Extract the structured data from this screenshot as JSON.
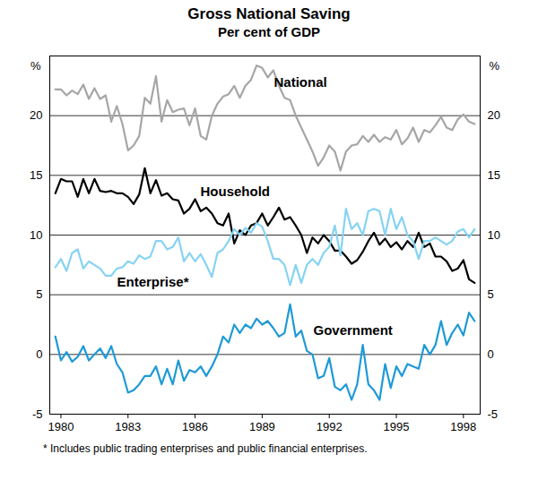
{
  "chart_data": {
    "type": "line",
    "title": "Gross National Saving",
    "subtitle": "Per cent of GDP",
    "y_label": "%",
    "footnote": "* Includes public trading enterprises and public financial enterprises.",
    "xlim": [
      1979.5,
      1998.75
    ],
    "xticks": [
      1980,
      1983,
      1986,
      1989,
      1992,
      1995,
      1998
    ],
    "ylim": [
      -5,
      25
    ],
    "yticks": [
      -5,
      0,
      5,
      10,
      15,
      20
    ],
    "grid": true,
    "x": [
      1979.75,
      1980,
      1980.25,
      1980.5,
      1980.75,
      1981,
      1981.25,
      1981.5,
      1981.75,
      1982,
      1982.25,
      1982.5,
      1982.75,
      1983,
      1983.25,
      1983.5,
      1983.75,
      1984,
      1984.25,
      1984.5,
      1984.75,
      1985,
      1985.25,
      1985.5,
      1985.75,
      1986,
      1986.25,
      1986.5,
      1986.75,
      1987,
      1987.25,
      1987.5,
      1987.75,
      1988,
      1988.25,
      1988.5,
      1988.75,
      1989,
      1989.25,
      1989.5,
      1989.75,
      1990,
      1990.25,
      1990.5,
      1990.75,
      1991,
      1991.25,
      1991.5,
      1991.75,
      1992,
      1992.25,
      1992.5,
      1992.75,
      1993,
      1993.25,
      1993.5,
      1993.75,
      1994,
      1994.25,
      1994.5,
      1994.75,
      1995,
      1995.25,
      1995.5,
      1995.75,
      1996,
      1996.25,
      1996.5,
      1996.75,
      1997,
      1997.25,
      1997.5,
      1997.75,
      1998,
      1998.25,
      1998.5
    ],
    "series": [
      {
        "name": "National",
        "color": "#a6a6a6",
        "values": [
          22.2,
          22.2,
          21.7,
          22.1,
          21.8,
          22.6,
          21.4,
          22.3,
          21.4,
          21.7,
          19.5,
          20.8,
          19.3,
          17.1,
          17.5,
          18.3,
          21.5,
          21.0,
          23.3,
          19.5,
          21.3,
          20.3,
          20.5,
          20.6,
          19.2,
          20.6,
          18.3,
          18.0,
          20.0,
          21.0,
          21.6,
          21.8,
          22.5,
          21.5,
          22.5,
          23.0,
          24.2,
          24.0,
          23.2,
          23.8,
          22.5,
          21.5,
          21.3,
          20.0,
          19.0,
          18.0,
          17.0,
          15.8,
          16.5,
          17.5,
          17.0,
          15.4,
          17.0,
          17.5,
          17.6,
          18.3,
          17.8,
          18.4,
          17.8,
          18.2,
          18.0,
          18.8,
          17.6,
          18.1,
          19.0,
          17.8,
          18.8,
          18.6,
          19.2,
          19.9,
          19.0,
          18.8,
          19.7,
          20.1,
          19.5,
          19.3
        ]
      },
      {
        "name": "Household",
        "color": "#000000",
        "values": [
          13.5,
          14.7,
          14.5,
          14.5,
          13.2,
          14.7,
          13.5,
          14.7,
          13.7,
          13.6,
          13.7,
          13.5,
          13.5,
          13.2,
          12.6,
          13.4,
          15.6,
          13.5,
          14.6,
          13.3,
          13.5,
          13.0,
          12.9,
          11.8,
          12.2,
          13.0,
          12.0,
          12.3,
          11.8,
          11.0,
          10.8,
          11.8,
          9.3,
          10.4,
          10.0,
          10.8,
          11.0,
          11.8,
          10.8,
          11.5,
          12.3,
          11.3,
          11.5,
          10.8,
          10.0,
          8.5,
          9.8,
          9.3,
          10.0,
          9.5,
          8.7,
          8.7,
          8.2,
          7.6,
          7.9,
          8.6,
          9.5,
          10.2,
          9.2,
          9.7,
          9.0,
          9.4,
          8.8,
          9.5,
          9.0,
          10.2,
          9.0,
          9.3,
          8.2,
          8.2,
          7.8,
          7.0,
          7.2,
          7.9,
          6.3,
          6.0
        ]
      },
      {
        "name": "Enterprise*",
        "color": "#86d3f3",
        "values": [
          7.3,
          8.0,
          7.0,
          8.5,
          8.8,
          7.2,
          7.8,
          7.5,
          7.2,
          6.6,
          6.6,
          7.2,
          7.3,
          7.8,
          7.6,
          8.3,
          8.0,
          8.2,
          9.5,
          9.5,
          8.8,
          9.0,
          9.8,
          7.8,
          8.5,
          7.8,
          8.4,
          7.5,
          6.5,
          8.5,
          8.8,
          9.5,
          10.5,
          10.0,
          10.6,
          10.2,
          11.0,
          10.7,
          9.5,
          8.0,
          8.0,
          7.5,
          5.8,
          7.5,
          6.0,
          7.5,
          8.0,
          7.5,
          8.5,
          9.0,
          10.8,
          8.3,
          12.2,
          10.5,
          11.0,
          10.0,
          12.0,
          12.2,
          12.0,
          10.0,
          12.2,
          10.5,
          11.5,
          10.0,
          9.5,
          8.0,
          9.5,
          9.5,
          9.8,
          9.5,
          9.2,
          9.5,
          10.3,
          10.5,
          9.8,
          10.5
        ]
      },
      {
        "name": "Government",
        "color": "#1e9ad6",
        "values": [
          1.5,
          -0.5,
          0.2,
          -0.6,
          -0.2,
          0.7,
          -0.5,
          0.0,
          0.5,
          -0.3,
          0.7,
          -0.8,
          -1.5,
          -3.2,
          -3.0,
          -2.5,
          -1.8,
          -1.8,
          -1.0,
          -2.5,
          -1.2,
          -2.5,
          -0.5,
          -2.2,
          -1.3,
          -1.5,
          -1.0,
          -1.8,
          -1.0,
          0.0,
          1.5,
          1.0,
          2.5,
          1.8,
          2.5,
          2.2,
          3.0,
          2.5,
          2.8,
          2.2,
          1.5,
          1.8,
          4.2,
          1.5,
          2.0,
          0.3,
          0.0,
          -2.0,
          -1.8,
          -0.3,
          -2.7,
          -3.0,
          -2.5,
          -3.8,
          -2.5,
          0.8,
          -2.5,
          -3.0,
          -3.8,
          -0.8,
          -2.8,
          -1.0,
          -1.8,
          -0.8,
          -1.0,
          -1.2,
          0.8,
          0.0,
          0.8,
          2.8,
          0.8,
          1.8,
          2.5,
          1.6,
          3.5,
          2.8
        ]
      }
    ]
  }
}
